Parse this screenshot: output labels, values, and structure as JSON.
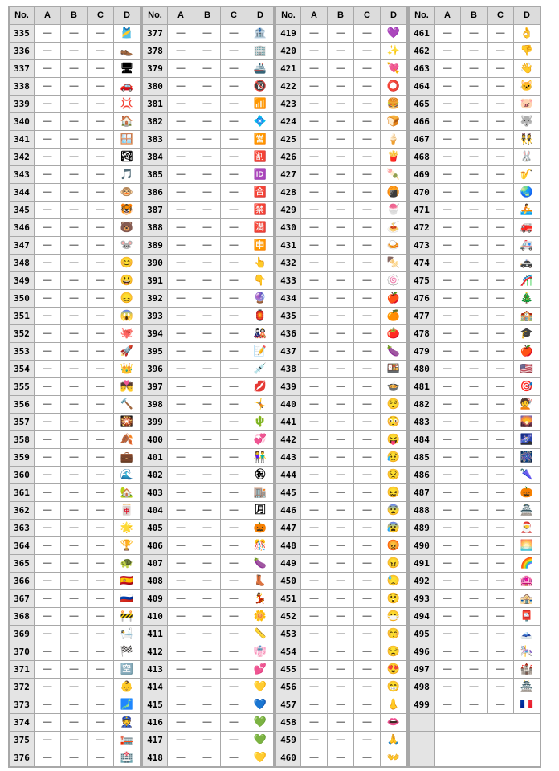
{
  "headers": [
    "No.",
    "A",
    "B",
    "C",
    "D"
  ],
  "dash": "—",
  "columns": [
    {
      "rows": [
        [
          "335",
          "🎽"
        ],
        [
          "336",
          "👞"
        ],
        [
          "337",
          "🖥"
        ],
        [
          "338",
          "🚗"
        ],
        [
          "339",
          "💢"
        ],
        [
          "340",
          "🏠"
        ],
        [
          "341",
          "🪟"
        ],
        [
          "342",
          "🏞"
        ],
        [
          "343",
          "🎵"
        ],
        [
          "344",
          "🐵"
        ],
        [
          "345",
          "🐯"
        ],
        [
          "346",
          "🐻"
        ],
        [
          "347",
          "🐭"
        ],
        [
          "348",
          "😊"
        ],
        [
          "349",
          "😃"
        ],
        [
          "350",
          "😞"
        ],
        [
          "351",
          "😱"
        ],
        [
          "352",
          "🐙"
        ],
        [
          "353",
          "🚀"
        ],
        [
          "354",
          "👑"
        ],
        [
          "355",
          "💏"
        ],
        [
          "356",
          "🔨"
        ],
        [
          "357",
          "🎇"
        ],
        [
          "358",
          "🍂"
        ],
        [
          "359",
          "💼"
        ],
        [
          "360",
          "🌊"
        ],
        [
          "361",
          "🏡"
        ],
        [
          "362",
          "🀄"
        ],
        [
          "363",
          "🌟"
        ],
        [
          "364",
          "🏆"
        ],
        [
          "365",
          "🐢"
        ],
        [
          "366",
          "🇪🇸"
        ],
        [
          "367",
          "🇷🇺"
        ],
        [
          "368",
          "🚧"
        ],
        [
          "369",
          "🛀"
        ],
        [
          "370",
          "🏁"
        ],
        [
          "371",
          "🈳"
        ],
        [
          "372",
          "👶"
        ],
        [
          "373",
          "🗾"
        ],
        [
          "374",
          "👮"
        ],
        [
          "375",
          "🏣"
        ],
        [
          "376",
          "🏥"
        ]
      ]
    },
    {
      "rows": [
        [
          "377",
          "🏦"
        ],
        [
          "378",
          "🏢"
        ],
        [
          "379",
          "🚢"
        ],
        [
          "380",
          "🔞"
        ],
        [
          "381",
          "📶"
        ],
        [
          "382",
          "💠"
        ],
        [
          "383",
          "🈺"
        ],
        [
          "384",
          "🈹"
        ],
        [
          "385",
          "🆔"
        ],
        [
          "386",
          "🈴"
        ],
        [
          "387",
          "🈲"
        ],
        [
          "388",
          "🈵"
        ],
        [
          "389",
          "🈸"
        ],
        [
          "390",
          "👆"
        ],
        [
          "391",
          "👇"
        ],
        [
          "392",
          "🔮"
        ],
        [
          "393",
          "🏮"
        ],
        [
          "394",
          "🎎"
        ],
        [
          "395",
          "📝"
        ],
        [
          "396",
          "💉"
        ],
        [
          "397",
          "💋"
        ],
        [
          "398",
          "🤸"
        ],
        [
          "399",
          "🌵"
        ],
        [
          "400",
          "💞"
        ],
        [
          "401",
          "👫"
        ],
        [
          "402",
          "㊗"
        ],
        [
          "403",
          "🏬"
        ],
        [
          "404",
          "🈷"
        ],
        [
          "405",
          "🎃"
        ],
        [
          "406",
          "🎊"
        ],
        [
          "407",
          "🍆"
        ],
        [
          "408",
          "👢"
        ],
        [
          "409",
          "💃"
        ],
        [
          "410",
          "🌼"
        ],
        [
          "411",
          "📏"
        ],
        [
          "412",
          "👘"
        ],
        [
          "413",
          "💕"
        ],
        [
          "414",
          "💛"
        ],
        [
          "415",
          "💙"
        ],
        [
          "416",
          "💚"
        ],
        [
          "417",
          "💚"
        ],
        [
          "418",
          "💛"
        ]
      ]
    },
    {
      "rows": [
        [
          "419",
          "💜"
        ],
        [
          "420",
          "✨"
        ],
        [
          "421",
          "💘"
        ],
        [
          "422",
          "⭕"
        ],
        [
          "423",
          "🍔"
        ],
        [
          "424",
          "🍞"
        ],
        [
          "425",
          "🍦"
        ],
        [
          "426",
          "🍟"
        ],
        [
          "427",
          "🍡"
        ],
        [
          "428",
          "🍘"
        ],
        [
          "429",
          "🍧"
        ],
        [
          "430",
          "🍝"
        ],
        [
          "431",
          "🍛"
        ],
        [
          "432",
          "🍢"
        ],
        [
          "433",
          "🍥"
        ],
        [
          "434",
          "🍎"
        ],
        [
          "435",
          "🍊"
        ],
        [
          "436",
          "🍅"
        ],
        [
          "437",
          "🍆"
        ],
        [
          "438",
          "🍱"
        ],
        [
          "439",
          "🍲"
        ],
        [
          "440",
          "😌"
        ],
        [
          "441",
          "😳"
        ],
        [
          "442",
          "😝"
        ],
        [
          "443",
          "😥"
        ],
        [
          "444",
          "😣"
        ],
        [
          "445",
          "😖"
        ],
        [
          "446",
          "😨"
        ],
        [
          "447",
          "😰"
        ],
        [
          "448",
          "😡"
        ],
        [
          "449",
          "😠"
        ],
        [
          "450",
          "😓"
        ],
        [
          "451",
          "😲"
        ],
        [
          "452",
          "😷"
        ],
        [
          "453",
          "😚"
        ],
        [
          "454",
          "😒"
        ],
        [
          "455",
          "😍"
        ],
        [
          "456",
          "😁"
        ],
        [
          "457",
          "👃"
        ],
        [
          "458",
          "👄"
        ],
        [
          "459",
          "🙏"
        ],
        [
          "460",
          "👐"
        ]
      ]
    },
    {
      "rows": [
        [
          "461",
          "👌"
        ],
        [
          "462",
          "👎"
        ],
        [
          "463",
          "👋"
        ],
        [
          "464",
          "🐱"
        ],
        [
          "465",
          "🐷"
        ],
        [
          "466",
          "🐺"
        ],
        [
          "467",
          "👯"
        ],
        [
          "468",
          "🐰"
        ],
        [
          "469",
          "🎷"
        ],
        [
          "470",
          "🌏"
        ],
        [
          "471",
          "🚣"
        ],
        [
          "472",
          "🚒"
        ],
        [
          "473",
          "🚑"
        ],
        [
          "474",
          "🚓"
        ],
        [
          "475",
          "🎢"
        ],
        [
          "476",
          "🎄"
        ],
        [
          "477",
          "🏫"
        ],
        [
          "478",
          "🎓"
        ],
        [
          "479",
          "🍎"
        ],
        [
          "480",
          "🇺🇸"
        ],
        [
          "481",
          "🎯"
        ],
        [
          "482",
          "💇"
        ],
        [
          "483",
          "🌄"
        ],
        [
          "484",
          "🌌"
        ],
        [
          "485",
          "🎆"
        ],
        [
          "486",
          "🌂"
        ],
        [
          "487",
          "🎃"
        ],
        [
          "488",
          "🏯"
        ],
        [
          "489",
          "🎅"
        ],
        [
          "490",
          "🌅"
        ],
        [
          "491",
          "🌈"
        ],
        [
          "492",
          "🏩"
        ],
        [
          "493",
          "🏤"
        ],
        [
          "494",
          "📮"
        ],
        [
          "495",
          "🗻"
        ],
        [
          "496",
          "🎠"
        ],
        [
          "497",
          "🏰"
        ],
        [
          "498",
          "🏯"
        ],
        [
          "499",
          "🇫🇷"
        ]
      ]
    }
  ]
}
